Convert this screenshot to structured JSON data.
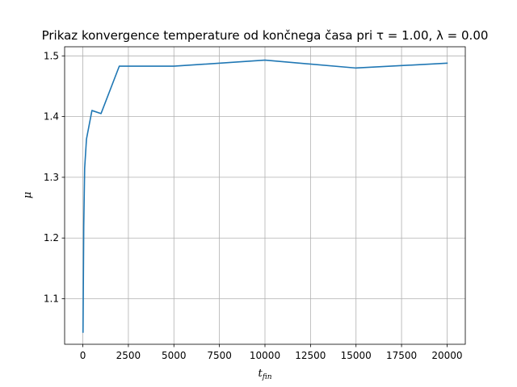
{
  "chart_data": {
    "type": "line",
    "title": "Prikaz konvergence temperature od končnega časa pri τ = 1.00, λ = 0.00",
    "xlabel": "t_fin",
    "xlabel_main": "t",
    "xlabel_sub": "fin",
    "ylabel": "μ",
    "xlim": [
      -1000,
      21000
    ],
    "ylim": [
      1.025,
      1.515
    ],
    "xticks": [
      0,
      2500,
      5000,
      7500,
      10000,
      12500,
      15000,
      17500,
      20000
    ],
    "xtick_labels": [
      "0",
      "2500",
      "5000",
      "7500",
      "10000",
      "12500",
      "15000",
      "17500",
      "20000"
    ],
    "yticks": [
      1.1,
      1.2,
      1.3,
      1.4,
      1.5
    ],
    "ytick_labels": [
      "1.1",
      "1.2",
      "1.3",
      "1.4",
      "1.5"
    ],
    "grid": true,
    "series": [
      {
        "color": "#1f77b4",
        "x": [
          10,
          50,
          100,
          200,
          500,
          1000,
          2000,
          5000,
          10000,
          15000,
          20000
        ],
        "y": [
          1.045,
          1.22,
          1.315,
          1.363,
          1.41,
          1.405,
          1.483,
          1.483,
          1.493,
          1.48,
          1.488
        ]
      }
    ]
  }
}
